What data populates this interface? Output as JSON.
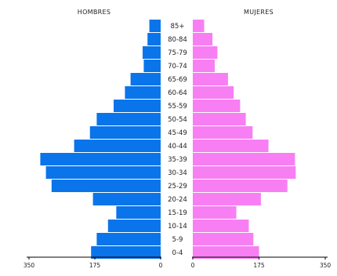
{
  "chart_data": {
    "type": "bar",
    "subtype": "population-pyramid",
    "categories": [
      "85+",
      "80-84",
      "75-79",
      "70-74",
      "65-69",
      "60-64",
      "55-59",
      "50-54",
      "45-49",
      "40-44",
      "35-39",
      "30-34",
      "25-29",
      "20-24",
      "15-19",
      "10-14",
      "5-9",
      "0-4"
    ],
    "series": [
      {
        "name": "HOMBRES",
        "side": "left",
        "color": "#0a74ea",
        "values": [
          30,
          35,
          48,
          45,
          80,
          95,
          125,
          170,
          188,
          230,
          320,
          305,
          290,
          180,
          118,
          140,
          170,
          185
        ]
      },
      {
        "name": "MUJERES",
        "side": "right",
        "color": "#f77ff3",
        "values": [
          30,
          52,
          65,
          58,
          93,
          108,
          125,
          140,
          158,
          200,
          270,
          272,
          250,
          180,
          115,
          148,
          160,
          175
        ]
      }
    ],
    "xlim": [
      0,
      350
    ],
    "x_ticks_left": [
      "350",
      "175",
      "0"
    ],
    "x_ticks_right": [
      "0",
      "175",
      "350"
    ],
    "grid": false,
    "legend": "none"
  }
}
